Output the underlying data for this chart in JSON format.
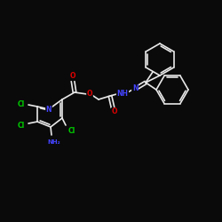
{
  "background_color": "#0a0a0a",
  "bond_color": "#e8e8e8",
  "atom_colors": {
    "Cl": "#00cc00",
    "N": "#4444ff",
    "O": "#dd0000",
    "NH2": "#4444ff",
    "NH": "#4444ff"
  },
  "fig_size": [
    2.5,
    2.5
  ],
  "dpi": 100,
  "lw": 1.2,
  "fs": 5.5
}
